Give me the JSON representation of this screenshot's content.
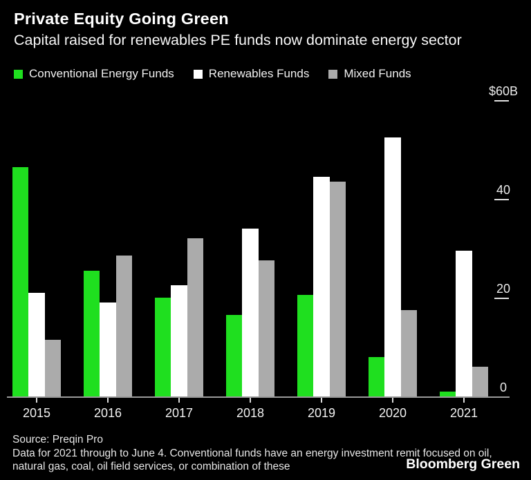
{
  "header": {
    "title": "Private Equity Going Green",
    "subtitle": "Capital raised for renewables PE funds now dominate energy sector"
  },
  "legend": {
    "items": [
      {
        "label": "Conventional Energy Funds",
        "color": "#1fdf1f"
      },
      {
        "label": "Renewables Funds",
        "color": "#ffffff"
      },
      {
        "label": "Mixed Funds",
        "color": "#ababab"
      }
    ]
  },
  "chart_data": {
    "type": "bar",
    "title": "Private Equity Going Green",
    "subtitle": "Capital raised for renewables PE funds now dominate energy sector",
    "unit": "billion USD",
    "categories": [
      "2015",
      "2016",
      "2017",
      "2018",
      "2019",
      "2020",
      "2021"
    ],
    "series": [
      {
        "name": "Conventional Energy Funds",
        "key": "conventional",
        "color": "#1fdf1f",
        "values": [
          46.5,
          25.5,
          20,
          16.5,
          20.5,
          8,
          1
        ]
      },
      {
        "name": "Renewables Funds",
        "key": "renewables",
        "color": "#ffffff",
        "values": [
          21,
          19,
          22.5,
          34,
          44.5,
          52.5,
          29.5
        ]
      },
      {
        "name": "Mixed Funds",
        "key": "mixed",
        "color": "#ababab",
        "values": [
          11.5,
          28.5,
          32,
          27.5,
          43.5,
          17.5,
          6
        ]
      }
    ],
    "xlabel": "",
    "ylabel": "",
    "ylim": [
      0,
      60
    ],
    "y_axis": {
      "ticks": [
        {
          "label": "$60B",
          "value": 60,
          "dash": true
        },
        {
          "label": "40",
          "value": 40,
          "dash": true
        },
        {
          "label": "20",
          "value": 20,
          "dash": true
        },
        {
          "label": "0",
          "value": 0,
          "dash": false
        }
      ],
      "side": "right"
    },
    "grid": "off",
    "legend_position": "top",
    "background": "#000000"
  },
  "footer": {
    "source": "Source: Preqin Pro",
    "note_line1": "Data for 2021 through to June 4. Conventional funds have an energy investment remit focused on oil,",
    "note_line2": "natural gas, coal, oil field services, or combination of these",
    "brand": "Bloomberg Green"
  }
}
